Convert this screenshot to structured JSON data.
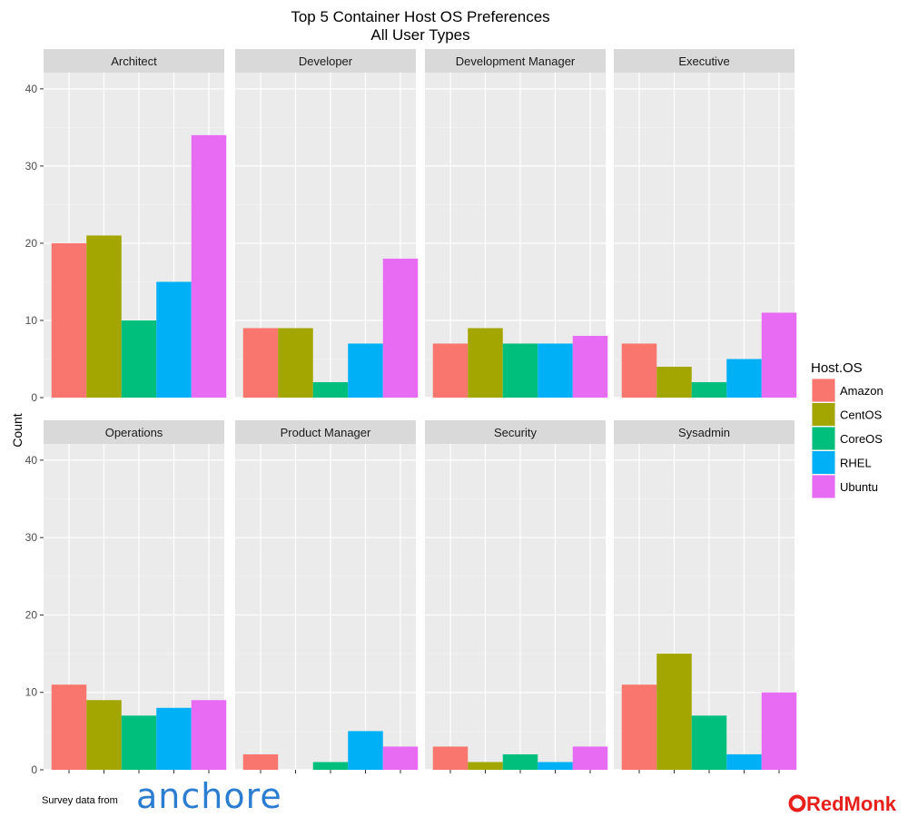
{
  "chart_data": {
    "type": "bar",
    "title": "Top 5 Container Host OS Preferences",
    "subtitle": "All User Types",
    "ylabel": "Count",
    "xlabel": "",
    "ylim": [
      0,
      40
    ],
    "y_ticks": [
      0,
      10,
      20,
      30,
      40
    ],
    "grid": true,
    "legend_position": "right",
    "legend_title": "Host.OS",
    "categories": [
      "Amazon",
      "CentOS",
      "CoreOS",
      "RHEL",
      "Ubuntu"
    ],
    "colors": {
      "Amazon": "#F8766D",
      "CentOS": "#A3A500",
      "CoreOS": "#00BF7D",
      "RHEL": "#00B0F6",
      "Ubuntu": "#E76BF3"
    },
    "facets": [
      {
        "name": "Architect",
        "values": [
          20,
          21,
          10,
          15,
          34
        ]
      },
      {
        "name": "Developer",
        "values": [
          9,
          9,
          2,
          7,
          18
        ]
      },
      {
        "name": "Development Manager",
        "values": [
          7,
          9,
          7,
          7,
          8
        ]
      },
      {
        "name": "Executive",
        "values": [
          7,
          4,
          2,
          5,
          11
        ]
      },
      {
        "name": "Operations",
        "values": [
          11,
          9,
          7,
          8,
          9
        ]
      },
      {
        "name": "Product Manager",
        "values": [
          2,
          0,
          1,
          5,
          3
        ]
      },
      {
        "name": "Security",
        "values": [
          3,
          1,
          2,
          1,
          3
        ]
      },
      {
        "name": "Sysadmin",
        "values": [
          11,
          15,
          7,
          2,
          10
        ]
      }
    ]
  },
  "footer": {
    "survey_text": "Survey data from",
    "anchore_logo": "anchore",
    "redmonk_logo": "RedMonk"
  }
}
